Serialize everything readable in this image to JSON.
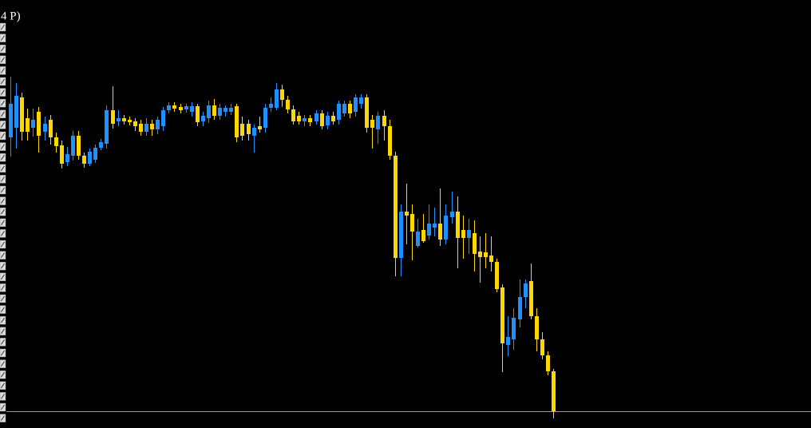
{
  "chart_data": {
    "type": "candlestick",
    "title": "4 P)",
    "up_color": "#1e90ff",
    "down_color": "#ffd700",
    "price_line_color": "#8a9bb0",
    "ylim": [
      0,
      536
    ],
    "price_line": 21,
    "open": [
      364,
      376,
      414,
      388,
      376,
      396,
      371,
      386,
      364,
      354,
      333,
      341,
      366,
      341,
      331,
      336,
      351,
      356,
      398,
      384,
      388,
      386,
      384,
      381,
      371,
      381,
      374,
      378,
      398,
      404,
      402,
      399,
      396,
      403,
      384,
      388,
      404,
      391,
      396,
      396,
      403,
      381,
      381,
      366,
      378,
      376,
      401,
      401,
      424,
      411,
      399,
      391,
      384,
      388,
      384,
      394,
      379,
      391,
      386,
      394,
      406,
      396,
      406,
      414,
      386,
      374,
      391,
      378,
      341,
      213,
      271,
      268,
      228,
      248,
      241,
      251,
      256,
      236,
      264,
      271,
      248,
      238,
      244,
      221,
      220,
      216,
      208,
      176,
      104,
      111,
      136,
      164,
      184,
      140,
      111,
      91,
      71
    ],
    "high": [
      440,
      432,
      420,
      400,
      400,
      402,
      390,
      392,
      370,
      360,
      352,
      372,
      372,
      345,
      350,
      355,
      362,
      404,
      428,
      398,
      392,
      390,
      388,
      386,
      388,
      386,
      390,
      402,
      408,
      408,
      406,
      406,
      408,
      406,
      396,
      410,
      412,
      406,
      404,
      406,
      406,
      390,
      386,
      380,
      390,
      406,
      414,
      432,
      430,
      416,
      404,
      396,
      392,
      392,
      398,
      398,
      396,
      396,
      410,
      410,
      410,
      418,
      418,
      418,
      392,
      396,
      398,
      386,
      346,
      280,
      306,
      280,
      262,
      268,
      280,
      276,
      300,
      280,
      296,
      290,
      266,
      262,
      260,
      240,
      244,
      240,
      212,
      180,
      140,
      150,
      186,
      186,
      206,
      150,
      120,
      96,
      74
    ],
    "low": [
      340,
      350,
      360,
      360,
      365,
      345,
      360,
      355,
      345,
      325,
      328,
      335,
      336,
      326,
      328,
      332,
      348,
      350,
      375,
      378,
      380,
      379,
      372,
      366,
      366,
      366,
      368,
      372,
      394,
      396,
      394,
      395,
      390,
      378,
      378,
      382,
      386,
      386,
      390,
      392,
      358,
      360,
      360,
      345,
      370,
      370,
      396,
      398,
      402,
      394,
      380,
      380,
      378,
      378,
      380,
      374,
      374,
      380,
      380,
      390,
      388,
      390,
      400,
      370,
      350,
      356,
      360,
      336,
      190,
      190,
      230,
      210,
      226,
      232,
      236,
      240,
      228,
      230,
      256,
      200,
      212,
      218,
      196,
      182,
      200,
      196,
      170,
      70,
      90,
      98,
      126,
      150,
      136,
      96,
      86,
      66,
      12
    ],
    "close": [
      406,
      416,
      371,
      371,
      386,
      366,
      381,
      364,
      353,
      331,
      343,
      366,
      341,
      331,
      346,
      351,
      358,
      398,
      381,
      388,
      384,
      383,
      378,
      371,
      381,
      374,
      386,
      398,
      404,
      400,
      398,
      403,
      403,
      383,
      391,
      404,
      391,
      401,
      401,
      401,
      364,
      366,
      368,
      376,
      374,
      401,
      406,
      424,
      411,
      399,
      384,
      384,
      388,
      383,
      394,
      378,
      391,
      384,
      406,
      406,
      394,
      414,
      414,
      376,
      376,
      391,
      378,
      341,
      213,
      271,
      266,
      246,
      246,
      234,
      256,
      256,
      236,
      266,
      271,
      238,
      238,
      248,
      218,
      214,
      214,
      208,
      174,
      106,
      114,
      138,
      164,
      181,
      140,
      111,
      91,
      71,
      21
    ]
  }
}
